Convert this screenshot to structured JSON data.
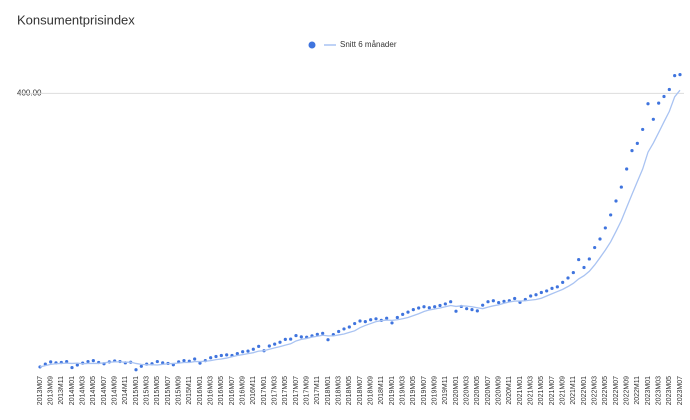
{
  "chart_data": {
    "type": "line",
    "title": "Konsumentprisindex",
    "categories": [
      "2013M07",
      null,
      "2013M09",
      null,
      "2013M11",
      null,
      "2014M01",
      null,
      "2014M03",
      null,
      "2014M05",
      null,
      "2014M07",
      null,
      "2014M09",
      null,
      "2014M11",
      null,
      "2015M01",
      null,
      "2015M03",
      null,
      "2015M05",
      null,
      "2015M07",
      null,
      "2015M09",
      null,
      "2015M11",
      null,
      "2016M01",
      null,
      "2016M03",
      null,
      "2016M05",
      null,
      "2016M07",
      null,
      "2016M09",
      null,
      "2016M11",
      null,
      "2017M01",
      null,
      "2017M03",
      null,
      "2017M05",
      null,
      "2017M07",
      null,
      "2017M09",
      null,
      "2017M11",
      null,
      "2018M01",
      null,
      "2018M03",
      null,
      "2018M05",
      null,
      "2018M07",
      null,
      "2018M09",
      null,
      "2018M11",
      null,
      "2019M01",
      null,
      "2019M03",
      null,
      "2019M05",
      null,
      "2019M07",
      null,
      "2019M09",
      null,
      "2019M11",
      null,
      "2020M01",
      null,
      "2020M03",
      null,
      "2020M05",
      null,
      "2020M07",
      null,
      "2020M09",
      null,
      "2020M11",
      null,
      "2021M01",
      null,
      "2021M03",
      null,
      "2021M05",
      null,
      "2021M07",
      null,
      "2021M09",
      null,
      "2021M11",
      null,
      "2022M01",
      null,
      "2022M03",
      null,
      "2022M05",
      null,
      "2022M07",
      null,
      "2022M09",
      null,
      "2022M11",
      null,
      "2023M01",
      null,
      "2023M03",
      null,
      "2023M05",
      null,
      "2023M07"
    ],
    "series": [
      {
        "type": "scatter",
        "color": "#3f74de",
        "values": [
          313.6,
          314.5,
          315.2,
          314.9,
          315.0,
          315.3,
          313.4,
          314.2,
          314.8,
          315.3,
          315.6,
          315.0,
          314.6,
          315.2,
          315.5,
          315.3,
          314.9,
          315.1,
          312.7,
          313.8,
          314.5,
          314.6,
          315.3,
          314.9,
          314.7,
          314.3,
          315.2,
          315.6,
          315.4,
          316.1,
          314.8,
          315.6,
          316.5,
          316.9,
          317.2,
          317.4,
          317.2,
          317.8,
          318.4,
          318.6,
          319.2,
          320.1,
          318.7,
          320.2,
          320.8,
          321.4,
          322.3,
          322.4,
          323.5,
          323.1,
          323.0,
          323.4,
          323.9,
          324.2,
          322.2,
          323.8,
          324.8,
          325.6,
          326.2,
          327.3,
          328.1,
          327.9,
          328.5,
          328.8,
          328.3,
          329.0,
          327.5,
          329.2,
          330.2,
          330.9,
          331.7,
          332.2,
          332.6,
          332.3,
          332.6,
          333.0,
          333.5,
          334.2,
          331.2,
          332.7,
          332.0,
          331.7,
          331.3,
          333.1,
          334.2,
          334.5,
          333.9,
          334.3,
          334.5,
          335.2,
          334.0,
          334.9,
          336.0,
          336.4,
          337.1,
          337.6,
          338.4,
          338.9,
          340.3,
          341.7,
          343.4,
          347.5,
          345.0,
          347.7,
          351.3,
          354.0,
          357.5,
          361.6,
          366.0,
          370.4,
          376.1,
          381.9,
          384.2,
          388.6,
          396.7,
          391.8,
          396.9,
          399.0,
          401.2,
          405.6,
          405.9
        ]
      },
      {
        "type": "line",
        "name": "Snitt 6 månader",
        "color": "#a9c3f2",
        "values": [
          313.6,
          314.0,
          314.4,
          314.6,
          314.7,
          314.8,
          314.7,
          314.8,
          314.6,
          314.7,
          314.7,
          314.7,
          314.9,
          315.1,
          315.2,
          315.2,
          315.1,
          315.1,
          314.7,
          314.4,
          314.3,
          314.3,
          314.2,
          314.4,
          314.6,
          314.7,
          314.8,
          315.0,
          315.0,
          315.3,
          315.3,
          315.4,
          315.6,
          315.9,
          316.1,
          316.4,
          316.8,
          317.2,
          317.5,
          317.8,
          318.1,
          318.6,
          318.7,
          319.2,
          319.6,
          320.0,
          320.5,
          320.9,
          321.8,
          322.3,
          322.6,
          323.0,
          323.3,
          323.6,
          323.4,
          323.4,
          323.7,
          324.0,
          324.5,
          325.0,
          326.0,
          326.7,
          327.3,
          327.9,
          328.2,
          328.4,
          328.3,
          328.5,
          328.8,
          329.2,
          329.8,
          330.4,
          331.1,
          331.6,
          331.9,
          332.2,
          332.6,
          333.0,
          332.7,
          332.9,
          332.8,
          332.6,
          332.3,
          332.0,
          332.5,
          332.9,
          333.2,
          333.7,
          334.1,
          334.4,
          334.4,
          334.5,
          334.7,
          334.9,
          335.3,
          336.0,
          336.7,
          337.4,
          338.1,
          339.0,
          340.0,
          341.4,
          342.4,
          343.8,
          345.8,
          348.1,
          350.5,
          353.1,
          356.4,
          359.8,
          364.0,
          368.1,
          372.1,
          376.1,
          381.4,
          384.3,
          387.6,
          391.0,
          394.3,
          398.9,
          401.0
        ]
      }
    ],
    "ylim": [
      312,
      408
    ],
    "yticks": [
      {
        "value": 400,
        "label": "400.00"
      }
    ],
    "grid": true,
    "legend": "top"
  }
}
